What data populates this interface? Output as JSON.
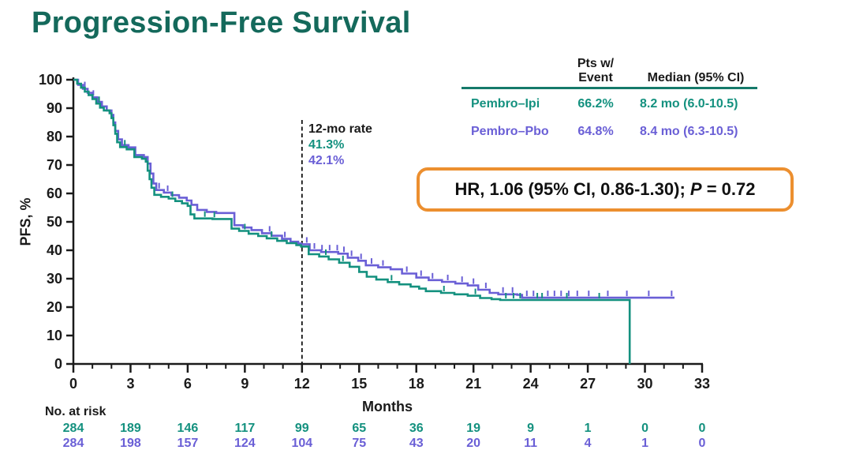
{
  "title": "Progression-Free Survival",
  "colors": {
    "title": "#14695b",
    "pembro_ipi": "#14917f",
    "pembro_pbo": "#6a5fd6",
    "hr_box_border": "#ec8f2f",
    "axis": "#1a1a1a",
    "table_rule": "#157a6a",
    "dashed_line": "#111111"
  },
  "annotation_12mo": {
    "label": "12-mo rate",
    "ipi_rate": "41.3%",
    "pbo_rate": "42.1%"
  },
  "summary_table": {
    "col_event_line1": "Pts w/",
    "col_event_line2": "Event",
    "col_median": "Median (95% CI)",
    "rows": [
      {
        "name": "Pembro–Ipi",
        "event": "66.2%",
        "median": "8.2 mo (6.0-10.5)",
        "color_key": "pembro_ipi"
      },
      {
        "name": "Pembro–Pbo",
        "event": "64.8%",
        "median": "8.4 mo (6.3-10.5)",
        "color_key": "pembro_pbo"
      }
    ]
  },
  "hr_box": {
    "prefix": "HR, 1.06 (95% CI, 0.86-1.30); ",
    "p_label": "P",
    "suffix": " = 0.72"
  },
  "chart_data": {
    "type": "line",
    "subtype": "kaplan-meier-step",
    "title": "Progression-Free Survival",
    "xlabel": "Months",
    "ylabel": "PFS, %",
    "xlim": [
      0,
      33
    ],
    "ylim": [
      0,
      100
    ],
    "x_major_ticks": [
      0,
      3,
      6,
      9,
      12,
      15,
      18,
      21,
      24,
      27,
      30,
      33
    ],
    "x_minor_step": 1,
    "y_ticks": [
      0,
      10,
      20,
      30,
      40,
      50,
      60,
      70,
      80,
      90,
      100
    ],
    "grid": false,
    "legend_position": "table-top-right",
    "twelve_month_marker": 12,
    "series": [
      {
        "key": "pembro_ipi",
        "name": "Pembro–Ipi",
        "color_key": "pembro_ipi",
        "median_months": 8.2,
        "rate_12mo_pct": 41.3,
        "steps": [
          [
            0,
            100
          ],
          [
            0.2,
            98.6
          ],
          [
            0.4,
            97.2
          ],
          [
            0.6,
            95.8
          ],
          [
            0.8,
            94.6
          ],
          [
            1.0,
            93.2
          ],
          [
            1.2,
            91.6
          ],
          [
            1.4,
            90.2
          ],
          [
            1.6,
            89.2
          ],
          [
            1.9,
            88.2
          ],
          [
            2.0,
            86.5
          ],
          [
            2.1,
            84.0
          ],
          [
            2.2,
            81.0
          ],
          [
            2.3,
            78.0
          ],
          [
            2.45,
            76.3
          ],
          [
            2.8,
            75.5
          ],
          [
            3.2,
            72.8
          ],
          [
            3.6,
            72.2
          ],
          [
            3.8,
            71.2
          ],
          [
            3.9,
            68.0
          ],
          [
            4.0,
            65.0
          ],
          [
            4.1,
            62.0
          ],
          [
            4.25,
            59.5
          ],
          [
            4.6,
            58.8
          ],
          [
            5.0,
            58.2
          ],
          [
            5.35,
            57.3
          ],
          [
            5.7,
            56.5
          ],
          [
            6.0,
            55.6
          ],
          [
            6.15,
            52.6
          ],
          [
            6.35,
            51.2
          ],
          [
            7.3,
            51.0
          ],
          [
            8.3,
            47.6
          ],
          [
            8.7,
            46.8
          ],
          [
            9.2,
            45.8
          ],
          [
            9.7,
            45.0
          ],
          [
            10.15,
            44.2
          ],
          [
            10.7,
            43.3
          ],
          [
            11.2,
            42.5
          ],
          [
            11.7,
            41.8
          ],
          [
            11.95,
            41.3
          ],
          [
            12.35,
            38.6
          ],
          [
            12.9,
            37.8
          ],
          [
            13.4,
            36.8
          ],
          [
            13.95,
            35.6
          ],
          [
            14.5,
            34.2
          ],
          [
            15.0,
            32.4
          ],
          [
            15.4,
            30.7
          ],
          [
            15.9,
            29.7
          ],
          [
            16.5,
            28.8
          ],
          [
            17.1,
            28.0
          ],
          [
            17.7,
            27.2
          ],
          [
            18.15,
            26.5
          ],
          [
            18.5,
            25.6
          ],
          [
            19.3,
            25.0
          ],
          [
            20.0,
            24.5
          ],
          [
            20.7,
            24.0
          ],
          [
            21.35,
            23.2
          ],
          [
            21.95,
            22.8
          ],
          [
            22.4,
            22.5
          ],
          [
            29.2,
            22.5
          ],
          [
            29.2,
            0
          ]
        ],
        "censor_times": [
          1.35,
          2.7,
          5.2,
          6.9,
          7.4,
          9.0,
          10.4,
          13.25,
          14.15,
          16.7,
          19.45,
          21.1,
          22.7,
          23.1,
          23.45,
          24.35,
          24.6,
          25.9,
          27.6
        ]
      },
      {
        "key": "pembro_pbo",
        "name": "Pembro–Pbo",
        "color_key": "pembro_pbo",
        "median_months": 8.4,
        "rate_12mo_pct": 42.1,
        "steps": [
          [
            0,
            100
          ],
          [
            0.25,
            98.2
          ],
          [
            0.5,
            96.8
          ],
          [
            0.75,
            95.4
          ],
          [
            1.0,
            93.8
          ],
          [
            1.25,
            92.2
          ],
          [
            1.5,
            90.6
          ],
          [
            1.75,
            89.2
          ],
          [
            2.0,
            87.6
          ],
          [
            2.1,
            85.0
          ],
          [
            2.2,
            82.0
          ],
          [
            2.35,
            79.0
          ],
          [
            2.55,
            77.0
          ],
          [
            2.9,
            76.2
          ],
          [
            3.25,
            73.5
          ],
          [
            3.7,
            72.8
          ],
          [
            3.9,
            70.5
          ],
          [
            4.05,
            67.0
          ],
          [
            4.2,
            63.5
          ],
          [
            4.35,
            61.2
          ],
          [
            4.75,
            60.3
          ],
          [
            5.15,
            59.4
          ],
          [
            5.55,
            58.5
          ],
          [
            5.95,
            57.5
          ],
          [
            6.2,
            56.0
          ],
          [
            6.5,
            54.2
          ],
          [
            7.0,
            53.5
          ],
          [
            7.5,
            53.1
          ],
          [
            8.45,
            48.8
          ],
          [
            8.9,
            48.0
          ],
          [
            9.35,
            47.1
          ],
          [
            9.9,
            46.0
          ],
          [
            10.4,
            45.1
          ],
          [
            10.95,
            44.0
          ],
          [
            11.4,
            43.0
          ],
          [
            11.8,
            42.4
          ],
          [
            11.95,
            42.1
          ],
          [
            12.4,
            40.0
          ],
          [
            13.0,
            39.4
          ],
          [
            13.9,
            38.8
          ],
          [
            14.4,
            37.4
          ],
          [
            14.95,
            36.3
          ],
          [
            15.35,
            34.7
          ],
          [
            16.0,
            34.0
          ],
          [
            16.65,
            33.3
          ],
          [
            17.25,
            31.8
          ],
          [
            18.0,
            30.4
          ],
          [
            18.65,
            29.5
          ],
          [
            19.35,
            28.9
          ],
          [
            20.05,
            28.3
          ],
          [
            20.7,
            27.6
          ],
          [
            21.25,
            26.1
          ],
          [
            21.85,
            25.0
          ],
          [
            22.3,
            24.5
          ],
          [
            23.3,
            24.3
          ],
          [
            23.55,
            23.3
          ],
          [
            31.55,
            23.3
          ]
        ],
        "censor_times": [
          0.6,
          1.05,
          4.5,
          4.95,
          10.3,
          11.1,
          12.25,
          12.65,
          13.05,
          13.45,
          13.85,
          14.2,
          14.6,
          15.1,
          15.65,
          16.25,
          17.5,
          18.25,
          18.85,
          19.65,
          20.4,
          21.0,
          21.65,
          22.55,
          23.05,
          23.8,
          24.15,
          24.9,
          25.25,
          25.6,
          26.0,
          26.45,
          27.05,
          28.05,
          29.05,
          30.2,
          31.4
        ]
      }
    ],
    "no_at_risk": {
      "label": "No. at risk",
      "months": [
        0,
        3,
        6,
        9,
        12,
        15,
        18,
        21,
        24,
        27,
        30,
        33
      ],
      "rows": [
        {
          "name": "Pembro–Ipi",
          "color_key": "pembro_ipi",
          "values": [
            284,
            189,
            146,
            117,
            99,
            65,
            36,
            19,
            9,
            1,
            0,
            0
          ]
        },
        {
          "name": "Pembro–Pbo",
          "color_key": "pembro_pbo",
          "values": [
            284,
            198,
            157,
            124,
            104,
            75,
            43,
            20,
            11,
            4,
            1,
            0
          ]
        }
      ]
    }
  }
}
